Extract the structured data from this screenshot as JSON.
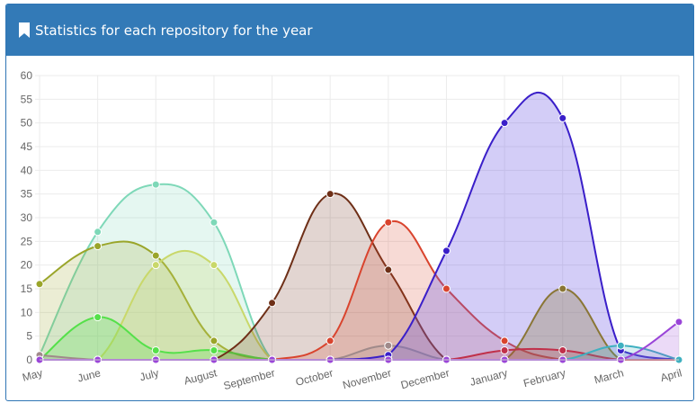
{
  "panel": {
    "title": "Statistics for each repository for the year",
    "icon": "bookmark-icon",
    "header_color": "#337ab7"
  },
  "chart_data": {
    "type": "area",
    "categories": [
      "May",
      "June",
      "July",
      "August",
      "September",
      "October",
      "November",
      "December",
      "January",
      "February",
      "March",
      "April"
    ],
    "ylim": [
      0,
      60
    ],
    "yticks": [
      0,
      5,
      10,
      15,
      20,
      25,
      30,
      35,
      40,
      45,
      50,
      55,
      60
    ],
    "grid": true,
    "legend": "none",
    "series": [
      {
        "color": "#7ed8b8",
        "fill": "rgba(126,216,184,0.2)",
        "values": [
          1,
          27,
          37,
          29,
          0,
          0,
          0,
          0,
          0,
          0,
          0,
          0
        ]
      },
      {
        "color": "#9aa52a",
        "fill": "rgba(154,165,42,0.2)",
        "values": [
          16,
          24,
          22,
          4,
          0,
          0,
          0,
          0,
          0,
          0,
          0,
          0
        ]
      },
      {
        "color": "#c9d86a",
        "fill": "rgba(201,216,106,0.25)",
        "values": [
          0,
          0,
          20,
          20,
          0,
          0,
          0,
          0,
          0,
          0,
          0,
          0
        ]
      },
      {
        "color": "#55e04a",
        "fill": "rgba(85,224,74,0.25)",
        "values": [
          0,
          9,
          2,
          2,
          0,
          0,
          0,
          0,
          0,
          0,
          0,
          0
        ]
      },
      {
        "color": "#6e2f17",
        "fill": "rgba(110,47,23,0.2)",
        "values": [
          0,
          0,
          0,
          0,
          12,
          35,
          19,
          0,
          0,
          0,
          0,
          0
        ]
      },
      {
        "color": "#d9442e",
        "fill": "rgba(217,68,46,0.2)",
        "values": [
          0,
          0,
          0,
          0,
          0,
          4,
          29,
          15,
          4,
          0,
          0,
          0
        ]
      },
      {
        "color": "#a08a8a",
        "fill": "rgba(160,138,138,0.2)",
        "values": [
          1,
          0,
          0,
          0,
          0,
          0,
          3,
          0,
          0,
          0,
          0,
          0
        ]
      },
      {
        "color": "#3a1fc9",
        "fill": "rgba(110,90,230,0.3)",
        "values": [
          0,
          0,
          0,
          0,
          0,
          0,
          1,
          23,
          50,
          51,
          2,
          0
        ]
      },
      {
        "color": "#8a7635",
        "fill": "rgba(138,118,53,0.3)",
        "values": [
          0,
          0,
          0,
          0,
          0,
          0,
          0,
          0,
          0,
          15,
          0,
          0
        ]
      },
      {
        "color": "#c0304a",
        "fill": "rgba(192,48,74,0.2)",
        "values": [
          0,
          0,
          0,
          0,
          0,
          0,
          0,
          0,
          2,
          2,
          0,
          0
        ]
      },
      {
        "color": "#3fb0c0",
        "fill": "rgba(63,176,192,0.2)",
        "values": [
          0,
          0,
          0,
          0,
          0,
          0,
          0,
          0,
          0,
          0,
          3,
          0
        ]
      },
      {
        "color": "#9a45d8",
        "fill": "rgba(154,69,216,0.2)",
        "values": [
          0,
          0,
          0,
          0,
          0,
          0,
          0,
          0,
          0,
          0,
          0,
          8
        ]
      }
    ]
  }
}
